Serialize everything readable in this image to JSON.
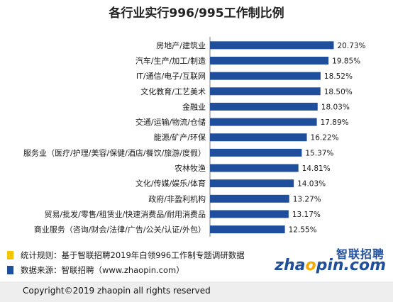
{
  "chart_data": {
    "type": "bar",
    "orientation": "horizontal",
    "title": "各行业实行996/995工作制比例",
    "categories": [
      "房地产/建筑业",
      "汽车/生产/加工/制造",
      "IT/通信/电子/互联网",
      "文化教育/工艺美术",
      "金融业",
      "交通/运输/物流/仓储",
      "能源/矿产/环保",
      "服务业（医疗/护理/美容/保健/酒店/餐饮/旅游/度假）",
      "农林牧渔",
      "文化/传媒/娱乐/体育",
      "政府/非盈利机构",
      "贸易/批发/零售/租赁业/快速消费品/耐用消费品",
      "商业服务（咨询/财会/法律/广告/公关/认证/外包）"
    ],
    "values": [
      20.73,
      19.85,
      18.52,
      18.5,
      18.03,
      17.89,
      16.22,
      15.37,
      14.81,
      14.03,
      13.27,
      13.17,
      12.55
    ],
    "value_labels": [
      "20.73%",
      "19.85%",
      "18.52%",
      "18.50%",
      "18.03%",
      "17.89%",
      "16.22%",
      "15.37%",
      "14.81%",
      "14.03%",
      "13.27%",
      "13.17%",
      "12.55%"
    ],
    "xlim": [
      0,
      25
    ],
    "grid": false,
    "legend": "none",
    "bar_color": "#1f4e9c"
  },
  "notes": {
    "rule": "统计规则：基于智联招聘2019年白领996工作制专题调研数据",
    "source": "数据来源：智联招聘（www.zhaopin.com）",
    "rule_bullet_color": "#f2c500",
    "source_bullet_color": "#1f4e9c"
  },
  "logo": {
    "cn": "智联招聘",
    "en_pre": "zha",
    "en_dot": "o",
    "en_post": "pin.com"
  },
  "footer": {
    "copyright": "Copyright©2019 zhaopin all rights reserved"
  }
}
